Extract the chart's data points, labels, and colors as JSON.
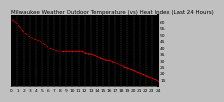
{
  "title": "Milwaukee Weather Outdoor Temperature (vs) Heat Index (Last 24 Hours)",
  "background_color": "#c0c0c0",
  "plot_bg_color": "#000000",
  "grid_color": "#555555",
  "temp_color": "#000000",
  "heat_color": "#ff0000",
  "xlim": [
    0,
    288
  ],
  "ylim": [
    10,
    65
  ],
  "ytick_values": [
    15,
    20,
    25,
    30,
    35,
    40,
    45,
    50,
    55,
    60
  ],
  "ytick_labels": [
    "15",
    "20",
    "25",
    "30",
    "35",
    "40",
    "45",
    "50",
    "55",
    "60"
  ],
  "xgrid_positions": [
    0,
    12,
    24,
    36,
    48,
    60,
    72,
    84,
    96,
    108,
    120,
    132,
    144,
    156,
    168,
    180,
    192,
    204,
    216,
    228,
    240,
    252,
    264,
    276,
    288
  ],
  "xtick_positions": [
    0,
    12,
    24,
    36,
    48,
    60,
    72,
    84,
    96,
    108,
    120,
    132,
    144,
    156,
    168,
    180,
    192,
    204,
    216,
    228,
    240,
    252,
    264,
    276,
    288
  ],
  "xtick_labels": [
    "0",
    "1",
    "2",
    "3",
    "4",
    "5",
    "6",
    "7",
    "8",
    "9",
    "10",
    "11",
    "12",
    "13",
    "14",
    "15",
    "16",
    "17",
    "18",
    "19",
    "20",
    "21",
    "22",
    "23",
    "24"
  ],
  "temp_x": [
    0,
    6,
    12,
    18,
    24,
    30,
    36,
    42,
    48,
    54,
    60,
    66,
    72,
    78,
    84,
    90,
    96,
    102,
    108,
    114,
    120,
    126,
    132,
    138,
    144,
    150,
    156,
    162,
    168,
    174,
    180,
    186,
    192,
    198,
    204,
    210,
    216,
    222,
    228,
    234,
    240,
    246,
    252,
    258,
    264,
    270,
    276,
    282,
    288
  ],
  "temp_y": [
    62,
    60,
    58,
    55,
    52,
    50,
    48,
    47,
    46,
    45,
    44,
    42,
    40,
    39,
    38,
    37,
    37,
    36,
    36,
    35,
    35,
    34,
    34,
    33,
    33,
    32,
    32,
    31,
    31,
    30,
    30,
    29,
    29,
    28,
    28,
    27,
    27,
    26,
    26,
    25,
    25,
    24,
    23,
    22,
    21,
    20,
    19,
    18,
    17
  ],
  "heat_x": [
    0,
    6,
    12,
    18,
    24,
    30,
    36,
    42,
    48,
    54,
    60,
    66,
    72,
    78,
    84,
    90,
    96,
    102,
    108,
    114,
    120,
    126,
    132,
    138,
    144,
    150,
    156,
    162,
    168,
    174,
    180,
    186,
    192,
    198,
    204,
    210,
    216,
    222,
    228,
    234,
    240,
    246,
    252,
    258,
    264,
    270,
    276,
    282,
    288
  ],
  "heat_y": [
    62,
    60,
    58,
    55,
    52,
    50,
    48,
    47,
    46,
    45,
    44,
    42,
    40,
    39,
    38,
    37,
    37,
    37,
    37,
    37,
    37,
    37,
    37,
    37,
    36,
    35,
    35,
    34,
    33,
    32,
    31,
    30,
    30,
    29,
    28,
    27,
    26,
    25,
    24,
    23,
    22,
    21,
    20,
    19,
    18,
    17,
    16,
    15,
    14
  ],
  "title_fontsize": 4.0,
  "tick_fontsize": 3.2,
  "marker_size": 0.8,
  "linewidth": 0.5
}
